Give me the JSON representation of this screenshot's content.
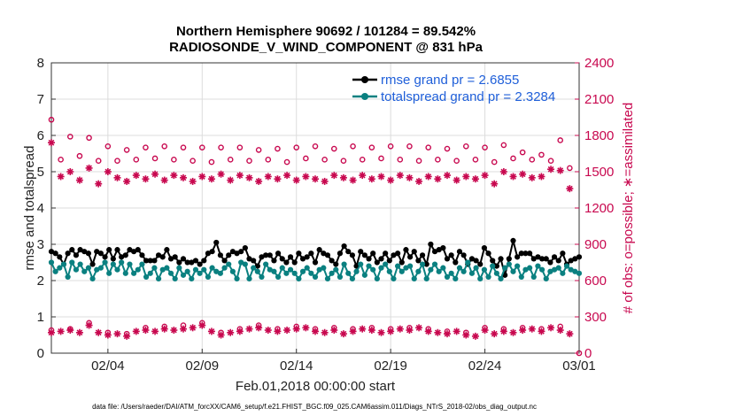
{
  "chart_data": {
    "type": "line",
    "title_line1": "Northern Hemisphere 90692 / 101284 = 89.542%",
    "title_line2": "RADIOSONDE_V_WIND_COMPONENT @ 831 hPa",
    "xlabel": "Feb.01,2018 00:00:00 start",
    "ylabel_left": "rmse and totalspread",
    "ylabel_right": "# of obs: o=possible; ∗=assimilated",
    "footnote": "data file: /Users/raeder/DAI/ATM_forcXX/CAM6_setup/f.e21.FHIST_BGC.f09_025.CAM6assim.011/Diags_NTrS_2018-02/obs_diag_output.nc",
    "x_range_days": [
      0.5,
      28.5
    ],
    "ylim_left": [
      0,
      8
    ],
    "ylim_right": [
      0,
      2400
    ],
    "x_ticks": [
      {
        "day": 3.5,
        "label": "02/04"
      },
      {
        "day": 8.5,
        "label": "02/09"
      },
      {
        "day": 13.5,
        "label": "02/14"
      },
      {
        "day": 18.5,
        "label": "02/19"
      },
      {
        "day": 23.5,
        "label": "02/24"
      },
      {
        "day": 28.5,
        "label": "03/01"
      }
    ],
    "y_ticks_left": [
      "0",
      "1",
      "2",
      "3",
      "4",
      "5",
      "6",
      "7",
      "8"
    ],
    "y_ticks_right": [
      "0",
      "300",
      "600",
      "900",
      "1200",
      "1500",
      "1800",
      "2100",
      "2400"
    ],
    "legend_location": "top-right",
    "colors": {
      "rmse": "#000000",
      "totalspread": "#0a8080",
      "obs_count": "#c8084f",
      "legend_text": "#1f5fd9",
      "grid": "#dcdcdc"
    },
    "series": [
      {
        "name": "rmse grand pr = 2.6855",
        "values": [
          2.8,
          2.75,
          2.65,
          2.45,
          2.75,
          2.85,
          2.7,
          2.85,
          2.8,
          2.75,
          2.45,
          2.8,
          2.75,
          2.65,
          2.85,
          2.6,
          2.85,
          2.65,
          2.7,
          2.85,
          2.8,
          2.85,
          2.7,
          2.55,
          2.55,
          2.55,
          2.7,
          2.65,
          2.85,
          2.6,
          2.65,
          2.5,
          2.6,
          2.5,
          2.5,
          2.55,
          2.45,
          2.55,
          2.75,
          2.8,
          3.05,
          2.7,
          2.55,
          2.7,
          2.8,
          2.75,
          2.8,
          2.9,
          2.6,
          2.55,
          2.4,
          2.65,
          2.7,
          2.7,
          2.55,
          2.75,
          2.6,
          2.5,
          2.65,
          2.5,
          2.75,
          2.6,
          2.65,
          2.75,
          2.5,
          2.85,
          2.75,
          2.7,
          2.55,
          2.45,
          2.75,
          2.95,
          2.8,
          2.7,
          2.4,
          2.8,
          2.7,
          2.6,
          2.75,
          2.5,
          2.6,
          2.75,
          2.55,
          2.7,
          2.75,
          2.5,
          2.85,
          2.65,
          2.8,
          2.55,
          2.7,
          2.45,
          3.0,
          2.8,
          2.85,
          2.9,
          2.6,
          2.7,
          2.5,
          2.8,
          2.7,
          2.45,
          2.6,
          2.55,
          2.45,
          2.9,
          2.75,
          2.55,
          2.4,
          2.6,
          2.15,
          2.6,
          3.1,
          2.65,
          2.75,
          2.75,
          2.75,
          2.6,
          2.65,
          2.6,
          2.6,
          2.5,
          2.65,
          2.55,
          2.75,
          2.45,
          2.55,
          2.6,
          2.65
        ]
      },
      {
        "name": "totalspread grand pr = 2.3284",
        "values": [
          2.5,
          2.25,
          2.35,
          2.45,
          2.1,
          2.5,
          2.3,
          2.45,
          2.25,
          2.35,
          2.05,
          2.3,
          2.35,
          2.5,
          2.2,
          2.45,
          2.3,
          2.5,
          2.2,
          2.45,
          2.2,
          2.3,
          2.45,
          2.1,
          2.2,
          2.35,
          2.05,
          2.3,
          2.35,
          2.2,
          2.05,
          2.35,
          2.15,
          2.25,
          2.05,
          2.3,
          2.2,
          2.3,
          2.1,
          2.35,
          2.25,
          2.2,
          2.35,
          2.45,
          2.25,
          2.05,
          2.5,
          2.45,
          2.05,
          2.35,
          2.25,
          2.1,
          2.45,
          2.3,
          2.25,
          2.1,
          2.35,
          2.2,
          2.3,
          2.2,
          2.05,
          2.25,
          2.35,
          2.2,
          2.1,
          2.3,
          2.35,
          2.05,
          2.2,
          2.3,
          2.1,
          2.45,
          2.2,
          2.05,
          2.25,
          2.45,
          2.15,
          2.4,
          2.3,
          2.05,
          2.35,
          2.45,
          2.25,
          2.05,
          2.4,
          2.25,
          2.35,
          2.4,
          2.05,
          2.25,
          2.45,
          2.05,
          2.3,
          2.45,
          2.25,
          2.35,
          2.1,
          2.2,
          2.05,
          2.35,
          2.25,
          2.5,
          2.2,
          2.35,
          2.05,
          2.3,
          2.1,
          2.4,
          2.2,
          2.05,
          2.35,
          2.45,
          2.25,
          2.4,
          2.1,
          2.3,
          2.35,
          2.1,
          2.4,
          2.3,
          2.05,
          2.25,
          2.3,
          2.35,
          2.2,
          2.4,
          2.3,
          2.25,
          2.2
        ]
      }
    ],
    "obs_possible": [
      {
        "day": 0.5,
        "count": 1930
      },
      {
        "day": 1.5,
        "count": 1790
      },
      {
        "day": 2.5,
        "count": 1780
      },
      {
        "day": 3.5,
        "count": 1710
      },
      {
        "day": 4.5,
        "count": 1680
      },
      {
        "day": 5.5,
        "count": 1700
      },
      {
        "day": 6.5,
        "count": 1710
      },
      {
        "day": 7.5,
        "count": 1700
      },
      {
        "day": 8.5,
        "count": 1700
      },
      {
        "day": 9.5,
        "count": 1700
      },
      {
        "day": 10.5,
        "count": 1700
      },
      {
        "day": 11.5,
        "count": 1680
      },
      {
        "day": 12.5,
        "count": 1690
      },
      {
        "day": 13.5,
        "count": 1700
      },
      {
        "day": 14.5,
        "count": 1710
      },
      {
        "day": 15.5,
        "count": 1690
      },
      {
        "day": 16.5,
        "count": 1710
      },
      {
        "day": 17.5,
        "count": 1700
      },
      {
        "day": 18.5,
        "count": 1710
      },
      {
        "day": 19.5,
        "count": 1710
      },
      {
        "day": 20.5,
        "count": 1700
      },
      {
        "day": 21.5,
        "count": 1690
      },
      {
        "day": 22.5,
        "count": 1710
      },
      {
        "day": 23.5,
        "count": 1700
      },
      {
        "day": 24.5,
        "count": 1720
      },
      {
        "day": 25.5,
        "count": 1660
      },
      {
        "day": 26.5,
        "count": 1640
      },
      {
        "day": 27.5,
        "count": 1760
      },
      {
        "day": 1.0,
        "count": 1600
      },
      {
        "day": 2.0,
        "count": 1630
      },
      {
        "day": 3.0,
        "count": 1590
      },
      {
        "day": 4.0,
        "count": 1590
      },
      {
        "day": 5.0,
        "count": 1600
      },
      {
        "day": 6.0,
        "count": 1610
      },
      {
        "day": 7.0,
        "count": 1600
      },
      {
        "day": 8.0,
        "count": 1590
      },
      {
        "day": 9.0,
        "count": 1580
      },
      {
        "day": 10.0,
        "count": 1600
      },
      {
        "day": 11.0,
        "count": 1590
      },
      {
        "day": 12.0,
        "count": 1600
      },
      {
        "day": 13.0,
        "count": 1580
      },
      {
        "day": 14.0,
        "count": 1610
      },
      {
        "day": 15.0,
        "count": 1600
      },
      {
        "day": 16.0,
        "count": 1590
      },
      {
        "day": 17.0,
        "count": 1600
      },
      {
        "day": 18.0,
        "count": 1610
      },
      {
        "day": 19.0,
        "count": 1600
      },
      {
        "day": 20.0,
        "count": 1590
      },
      {
        "day": 21.0,
        "count": 1600
      },
      {
        "day": 22.0,
        "count": 1590
      },
      {
        "day": 23.0,
        "count": 1600
      },
      {
        "day": 24.0,
        "count": 1580
      },
      {
        "day": 25.0,
        "count": 1610
      },
      {
        "day": 26.0,
        "count": 1600
      },
      {
        "day": 27.0,
        "count": 1590
      },
      {
        "day": 28.0,
        "count": 1530
      }
    ],
    "obs_assimilated": [
      {
        "day": 0.5,
        "count": 1740
      },
      {
        "day": 1.0,
        "count": 1460
      },
      {
        "day": 1.5,
        "count": 1500
      },
      {
        "day": 2.0,
        "count": 1430
      },
      {
        "day": 2.5,
        "count": 1530
      },
      {
        "day": 3.0,
        "count": 1400
      },
      {
        "day": 3.5,
        "count": 1500
      },
      {
        "day": 4.0,
        "count": 1450
      },
      {
        "day": 4.5,
        "count": 1420
      },
      {
        "day": 5.0,
        "count": 1470
      },
      {
        "day": 5.5,
        "count": 1440
      },
      {
        "day": 6.0,
        "count": 1480
      },
      {
        "day": 6.5,
        "count": 1430
      },
      {
        "day": 7.0,
        "count": 1470
      },
      {
        "day": 7.5,
        "count": 1450
      },
      {
        "day": 8.0,
        "count": 1420
      },
      {
        "day": 8.5,
        "count": 1460
      },
      {
        "day": 9.0,
        "count": 1440
      },
      {
        "day": 9.5,
        "count": 1480
      },
      {
        "day": 10.0,
        "count": 1430
      },
      {
        "day": 10.5,
        "count": 1470
      },
      {
        "day": 11.0,
        "count": 1450
      },
      {
        "day": 11.5,
        "count": 1420
      },
      {
        "day": 12.0,
        "count": 1460
      },
      {
        "day": 12.5,
        "count": 1440
      },
      {
        "day": 13.0,
        "count": 1470
      },
      {
        "day": 13.5,
        "count": 1430
      },
      {
        "day": 14.0,
        "count": 1460
      },
      {
        "day": 14.5,
        "count": 1440
      },
      {
        "day": 15.0,
        "count": 1420
      },
      {
        "day": 15.5,
        "count": 1470
      },
      {
        "day": 16.0,
        "count": 1450
      },
      {
        "day": 16.5,
        "count": 1430
      },
      {
        "day": 17.0,
        "count": 1470
      },
      {
        "day": 17.5,
        "count": 1440
      },
      {
        "day": 18.0,
        "count": 1460
      },
      {
        "day": 18.5,
        "count": 1430
      },
      {
        "day": 19.0,
        "count": 1470
      },
      {
        "day": 19.5,
        "count": 1450
      },
      {
        "day": 20.0,
        "count": 1420
      },
      {
        "day": 20.5,
        "count": 1460
      },
      {
        "day": 21.0,
        "count": 1440
      },
      {
        "day": 21.5,
        "count": 1470
      },
      {
        "day": 22.0,
        "count": 1430
      },
      {
        "day": 22.5,
        "count": 1460
      },
      {
        "day": 23.0,
        "count": 1440
      },
      {
        "day": 23.5,
        "count": 1470
      },
      {
        "day": 24.0,
        "count": 1400
      },
      {
        "day": 24.5,
        "count": 1500
      },
      {
        "day": 25.0,
        "count": 1460
      },
      {
        "day": 25.5,
        "count": 1480
      },
      {
        "day": 26.0,
        "count": 1450
      },
      {
        "day": 26.5,
        "count": 1460
      },
      {
        "day": 27.0,
        "count": 1520
      },
      {
        "day": 27.5,
        "count": 1510
      },
      {
        "day": 28.0,
        "count": 1360
      }
    ],
    "obs_assimilated_low": [
      {
        "day": 0.5,
        "count": 170
      },
      {
        "day": 1.0,
        "count": 180
      },
      {
        "day": 1.5,
        "count": 190
      },
      {
        "day": 2.0,
        "count": 170
      },
      {
        "day": 2.5,
        "count": 230
      },
      {
        "day": 3.0,
        "count": 170
      },
      {
        "day": 3.5,
        "count": 150
      },
      {
        "day": 4.0,
        "count": 160
      },
      {
        "day": 4.5,
        "count": 140
      },
      {
        "day": 5.0,
        "count": 180
      },
      {
        "day": 5.5,
        "count": 190
      },
      {
        "day": 6.0,
        "count": 180
      },
      {
        "day": 6.5,
        "count": 200
      },
      {
        "day": 7.0,
        "count": 190
      },
      {
        "day": 7.5,
        "count": 200
      },
      {
        "day": 8.0,
        "count": 210
      },
      {
        "day": 8.5,
        "count": 230
      },
      {
        "day": 9.0,
        "count": 180
      },
      {
        "day": 9.5,
        "count": 150
      },
      {
        "day": 10.0,
        "count": 170
      },
      {
        "day": 10.5,
        "count": 180
      },
      {
        "day": 11.0,
        "count": 200
      },
      {
        "day": 11.5,
        "count": 210
      },
      {
        "day": 12.0,
        "count": 190
      },
      {
        "day": 12.5,
        "count": 180
      },
      {
        "day": 13.0,
        "count": 190
      },
      {
        "day": 13.5,
        "count": 200
      },
      {
        "day": 14.0,
        "count": 210
      },
      {
        "day": 14.5,
        "count": 180
      },
      {
        "day": 15.0,
        "count": 170
      },
      {
        "day": 15.5,
        "count": 190
      },
      {
        "day": 16.0,
        "count": 160
      },
      {
        "day": 16.5,
        "count": 180
      },
      {
        "day": 17.0,
        "count": 200
      },
      {
        "day": 17.5,
        "count": 190
      },
      {
        "day": 18.0,
        "count": 170
      },
      {
        "day": 18.5,
        "count": 180
      },
      {
        "day": 19.0,
        "count": 200
      },
      {
        "day": 19.5,
        "count": 190
      },
      {
        "day": 20.0,
        "count": 210
      },
      {
        "day": 20.5,
        "count": 180
      },
      {
        "day": 21.0,
        "count": 170
      },
      {
        "day": 21.5,
        "count": 160
      },
      {
        "day": 22.0,
        "count": 180
      },
      {
        "day": 22.5,
        "count": 150
      },
      {
        "day": 23.0,
        "count": 140
      },
      {
        "day": 23.5,
        "count": 190
      },
      {
        "day": 24.0,
        "count": 160
      },
      {
        "day": 24.5,
        "count": 180
      },
      {
        "day": 25.0,
        "count": 170
      },
      {
        "day": 25.5,
        "count": 190
      },
      {
        "day": 26.0,
        "count": 200
      },
      {
        "day": 26.5,
        "count": 180
      },
      {
        "day": 27.0,
        "count": 210
      },
      {
        "day": 27.5,
        "count": 190
      },
      {
        "day": 28.0,
        "count": 160
      }
    ],
    "obs_possible_low": [
      {
        "day": 0.5,
        "count": 190
      },
      {
        "day": 1.5,
        "count": 200
      },
      {
        "day": 2.5,
        "count": 250
      },
      {
        "day": 3.5,
        "count": 170
      },
      {
        "day": 4.5,
        "count": 160
      },
      {
        "day": 5.5,
        "count": 210
      },
      {
        "day": 6.5,
        "count": 220
      },
      {
        "day": 7.5,
        "count": 230
      },
      {
        "day": 8.5,
        "count": 250
      },
      {
        "day": 9.5,
        "count": 170
      },
      {
        "day": 10.5,
        "count": 200
      },
      {
        "day": 11.5,
        "count": 230
      },
      {
        "day": 12.5,
        "count": 200
      },
      {
        "day": 13.5,
        "count": 220
      },
      {
        "day": 14.5,
        "count": 200
      },
      {
        "day": 15.5,
        "count": 210
      },
      {
        "day": 16.5,
        "count": 200
      },
      {
        "day": 17.5,
        "count": 210
      },
      {
        "day": 18.5,
        "count": 200
      },
      {
        "day": 19.5,
        "count": 210
      },
      {
        "day": 20.5,
        "count": 200
      },
      {
        "day": 21.5,
        "count": 180
      },
      {
        "day": 22.5,
        "count": 170
      },
      {
        "day": 23.5,
        "count": 210
      },
      {
        "day": 24.5,
        "count": 200
      },
      {
        "day": 25.5,
        "count": 210
      },
      {
        "day": 26.5,
        "count": 200
      },
      {
        "day": 27.5,
        "count": 220
      },
      {
        "day": 28.5,
        "count": 0
      }
    ]
  }
}
